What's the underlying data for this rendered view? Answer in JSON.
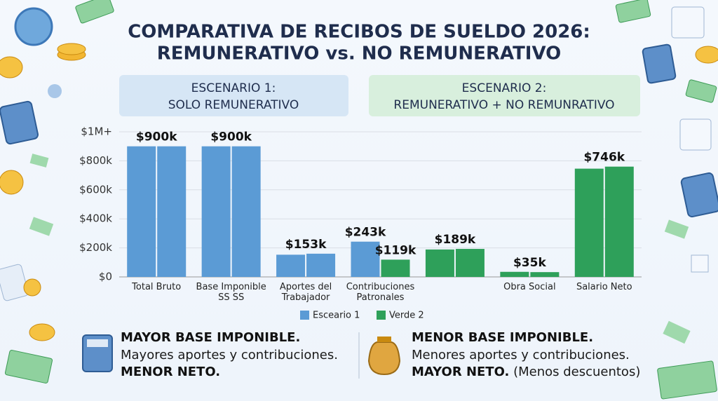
{
  "header": {
    "title": [
      "COMPARATIVA DE RECIBOS DE SUELDO 2026:",
      "REMUNERATIVO vs. NO REMUNERATIVO"
    ]
  },
  "scenarios": [
    {
      "title": "ESCENARIO 1:",
      "subtitle": "SOLO REMUNERATIVO"
    },
    {
      "title": "ESCENARIO 2:",
      "subtitle": "REMUNERATIVO + NO REMUNRATIVO"
    }
  ],
  "chart_data": {
    "type": "bar",
    "categories": [
      "Total Bruto",
      "Base Imponible SS SS",
      "Aportes del Trabajador",
      "Contribuciones Patronales",
      null,
      "Obra Social",
      "Salario Neto"
    ],
    "series": [
      {
        "name": "Esceario 1",
        "color": "#5b9bd5",
        "values": [
          900000,
          900000,
          153000,
          243000,
          189000,
          35000,
          746000
        ],
        "value_labels": [
          "$900k",
          "$900k",
          "$153k",
          "$243k",
          "$189k",
          "$35k",
          "$746k"
        ],
        "bar_colors": [
          "#5b9bd5",
          "#5b9bd5",
          "#5b9bd5",
          "#5b9bd5",
          "#2ea05a",
          "#2ea05a",
          "#2ea05a"
        ]
      },
      {
        "name": "Verde 2",
        "color": "#2ea05a",
        "values": [
          900000,
          900000,
          160000,
          119000,
          193000,
          33000,
          760000
        ],
        "value_labels": [
          null,
          null,
          null,
          "$119k",
          null,
          null,
          null
        ],
        "bar_colors": [
          "#5b9bd5",
          "#5b9bd5",
          "#5b9bd5",
          "#2ea05a",
          "#2ea05a",
          "#2ea05a",
          "#2ea05a"
        ]
      }
    ],
    "ylim": [
      0,
      1000000
    ],
    "yticks": [
      {
        "value": 0,
        "label": "$0"
      },
      {
        "value": 200000,
        "label": "$200k"
      },
      {
        "value": 400000,
        "label": "$400k"
      },
      {
        "value": 600000,
        "label": "$600k"
      },
      {
        "value": 800000,
        "label": "$800k"
      },
      {
        "value": 1000000,
        "label": "$1M+"
      }
    ],
    "grid": true
  },
  "notes": [
    {
      "heading": "MAYOR BASE IMPONIBLE.",
      "text": "Mayores aportes y contribuciones.",
      "footer": "MENOR NETO."
    },
    {
      "heading": "MENOR BASE IMPONIBLE.",
      "text": "Menores aportes y contribuciones.",
      "footer": "MAYOR NETO.",
      "footer_note": "(Menos descuentos)"
    }
  ]
}
